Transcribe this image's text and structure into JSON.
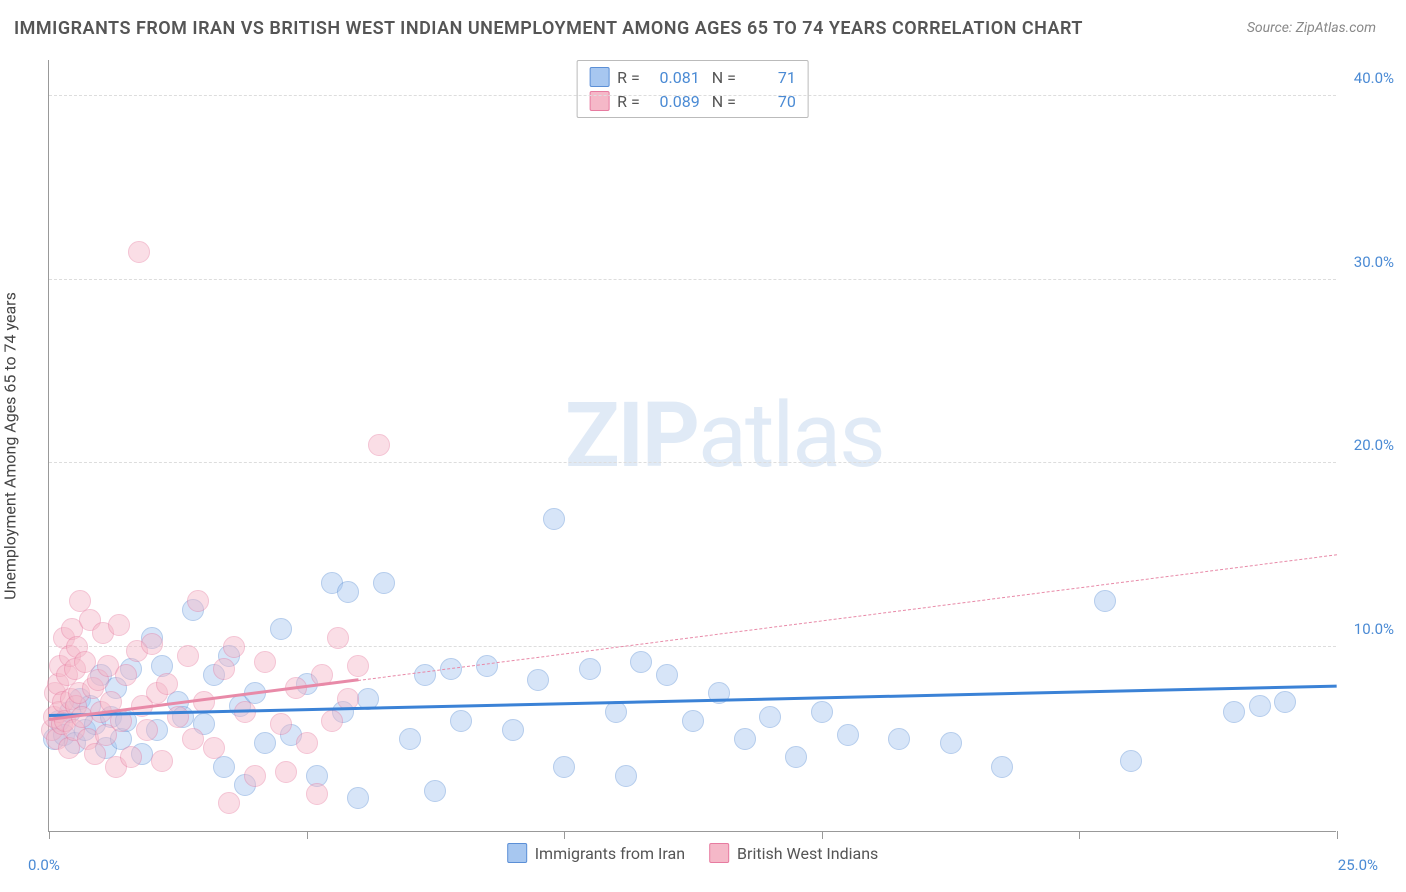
{
  "title": "IMMIGRANTS FROM IRAN VS BRITISH WEST INDIAN UNEMPLOYMENT AMONG AGES 65 TO 74 YEARS CORRELATION CHART",
  "source": "Source: ZipAtlas.com",
  "ylabel": "Unemployment Among Ages 65 to 74 years",
  "watermark_bold": "ZIP",
  "watermark_light": "atlas",
  "chart": {
    "type": "scatter",
    "xlim": [
      0,
      25
    ],
    "ylim": [
      0,
      42
    ],
    "xticks": [
      0,
      5,
      10,
      15,
      20,
      25
    ],
    "xtick_labels": [
      "0.0%",
      "",
      "",
      "",
      "",
      "25.0%"
    ],
    "yticks": [
      10,
      20,
      30,
      40
    ],
    "ytick_labels": [
      "10.0%",
      "20.0%",
      "30.0%",
      "40.0%"
    ],
    "background_color": "#ffffff",
    "grid_color": "#dddddd",
    "grid_dash": true,
    "point_radius": 11,
    "point_opacity": 0.45,
    "series": [
      {
        "name": "Immigrants from Iran",
        "color_fill": "#a7c7f0",
        "color_stroke": "#5b8fd6",
        "R": "0.081",
        "N": "71",
        "trend": {
          "x1": 0,
          "y1": 6.2,
          "x2": 25,
          "y2": 7.8,
          "width": 3,
          "dash": false,
          "color": "#3b82d6"
        },
        "points": [
          [
            0.1,
            5.0
          ],
          [
            0.2,
            6.0
          ],
          [
            0.3,
            5.2
          ],
          [
            0.4,
            6.5
          ],
          [
            0.5,
            4.8
          ],
          [
            0.6,
            7.2
          ],
          [
            0.7,
            5.5
          ],
          [
            0.8,
            6.8
          ],
          [
            0.9,
            5.8
          ],
          [
            1.0,
            8.5
          ],
          [
            1.1,
            4.5
          ],
          [
            1.2,
            6.2
          ],
          [
            1.3,
            7.8
          ],
          [
            1.4,
            5.0
          ],
          [
            1.5,
            6.0
          ],
          [
            1.6,
            8.8
          ],
          [
            1.8,
            4.2
          ],
          [
            2.0,
            10.5
          ],
          [
            2.1,
            5.5
          ],
          [
            2.2,
            9.0
          ],
          [
            2.5,
            7.0
          ],
          [
            2.6,
            6.2
          ],
          [
            2.8,
            12.0
          ],
          [
            3.0,
            5.8
          ],
          [
            3.2,
            8.5
          ],
          [
            3.4,
            3.5
          ],
          [
            3.5,
            9.5
          ],
          [
            3.7,
            6.8
          ],
          [
            3.8,
            2.5
          ],
          [
            4.0,
            7.5
          ],
          [
            4.2,
            4.8
          ],
          [
            4.5,
            11.0
          ],
          [
            4.7,
            5.2
          ],
          [
            5.0,
            8.0
          ],
          [
            5.2,
            3.0
          ],
          [
            5.5,
            13.5
          ],
          [
            5.7,
            6.5
          ],
          [
            5.8,
            13.0
          ],
          [
            6.0,
            1.8
          ],
          [
            6.2,
            7.2
          ],
          [
            6.5,
            13.5
          ],
          [
            7.0,
            5.0
          ],
          [
            7.3,
            8.5
          ],
          [
            7.5,
            2.2
          ],
          [
            7.8,
            8.8
          ],
          [
            8.0,
            6.0
          ],
          [
            8.5,
            9.0
          ],
          [
            9.0,
            5.5
          ],
          [
            9.5,
            8.2
          ],
          [
            9.8,
            17.0
          ],
          [
            10.0,
            3.5
          ],
          [
            10.5,
            8.8
          ],
          [
            11.0,
            6.5
          ],
          [
            11.2,
            3.0
          ],
          [
            11.5,
            9.2
          ],
          [
            12.0,
            8.5
          ],
          [
            12.5,
            6.0
          ],
          [
            13.0,
            7.5
          ],
          [
            13.5,
            5.0
          ],
          [
            14.0,
            6.2
          ],
          [
            14.5,
            4.0
          ],
          [
            15.0,
            6.5
          ],
          [
            15.5,
            5.2
          ],
          [
            16.5,
            5.0
          ],
          [
            17.5,
            4.8
          ],
          [
            18.5,
            3.5
          ],
          [
            20.5,
            12.5
          ],
          [
            21.0,
            3.8
          ],
          [
            23.0,
            6.5
          ],
          [
            23.5,
            6.8
          ],
          [
            24.0,
            7.0
          ]
        ]
      },
      {
        "name": "British West Indians",
        "color_fill": "#f5b8c8",
        "color_stroke": "#e77ba0",
        "R": "0.089",
        "N": "70",
        "trend": {
          "x1": 0,
          "y1": 6.0,
          "x2": 25,
          "y2": 15.0,
          "width": 1.5,
          "dash": true,
          "color": "#e88aa8",
          "solid_until_x": 6.0
        },
        "points": [
          [
            0.05,
            5.5
          ],
          [
            0.1,
            6.2
          ],
          [
            0.12,
            7.5
          ],
          [
            0.15,
            5.0
          ],
          [
            0.18,
            8.0
          ],
          [
            0.2,
            6.5
          ],
          [
            0.22,
            9.0
          ],
          [
            0.25,
            5.8
          ],
          [
            0.28,
            7.0
          ],
          [
            0.3,
            10.5
          ],
          [
            0.32,
            6.0
          ],
          [
            0.35,
            8.5
          ],
          [
            0.38,
            4.5
          ],
          [
            0.4,
            9.5
          ],
          [
            0.42,
            7.2
          ],
          [
            0.45,
            11.0
          ],
          [
            0.48,
            5.5
          ],
          [
            0.5,
            8.8
          ],
          [
            0.52,
            6.8
          ],
          [
            0.55,
            10.0
          ],
          [
            0.58,
            7.5
          ],
          [
            0.6,
            12.5
          ],
          [
            0.65,
            6.2
          ],
          [
            0.7,
            9.2
          ],
          [
            0.75,
            5.0
          ],
          [
            0.8,
            11.5
          ],
          [
            0.85,
            7.8
          ],
          [
            0.9,
            4.2
          ],
          [
            0.95,
            8.2
          ],
          [
            1.0,
            6.5
          ],
          [
            1.05,
            10.8
          ],
          [
            1.1,
            5.2
          ],
          [
            1.15,
            9.0
          ],
          [
            1.2,
            7.0
          ],
          [
            1.3,
            3.5
          ],
          [
            1.35,
            11.2
          ],
          [
            1.4,
            6.0
          ],
          [
            1.5,
            8.5
          ],
          [
            1.6,
            4.0
          ],
          [
            1.7,
            9.8
          ],
          [
            1.75,
            31.5
          ],
          [
            1.8,
            6.8
          ],
          [
            1.9,
            5.5
          ],
          [
            2.0,
            10.2
          ],
          [
            2.1,
            7.5
          ],
          [
            2.2,
            3.8
          ],
          [
            2.3,
            8.0
          ],
          [
            2.5,
            6.2
          ],
          [
            2.7,
            9.5
          ],
          [
            2.8,
            5.0
          ],
          [
            2.9,
            12.5
          ],
          [
            3.0,
            7.0
          ],
          [
            3.2,
            4.5
          ],
          [
            3.4,
            8.8
          ],
          [
            3.5,
            1.5
          ],
          [
            3.6,
            10.0
          ],
          [
            3.8,
            6.5
          ],
          [
            4.0,
            3.0
          ],
          [
            4.2,
            9.2
          ],
          [
            4.5,
            5.8
          ],
          [
            4.8,
            7.8
          ],
          [
            5.0,
            4.8
          ],
          [
            5.3,
            8.5
          ],
          [
            5.5,
            6.0
          ],
          [
            5.6,
            10.5
          ],
          [
            5.8,
            7.2
          ],
          [
            6.0,
            9.0
          ],
          [
            6.4,
            21.0
          ],
          [
            5.2,
            2.0
          ],
          [
            4.6,
            3.2
          ]
        ]
      }
    ]
  },
  "legend_bottom": [
    {
      "label": "Immigrants from Iran",
      "fill": "#a7c7f0",
      "stroke": "#5b8fd6"
    },
    {
      "label": "British West Indians",
      "fill": "#f5b8c8",
      "stroke": "#e77ba0"
    }
  ]
}
